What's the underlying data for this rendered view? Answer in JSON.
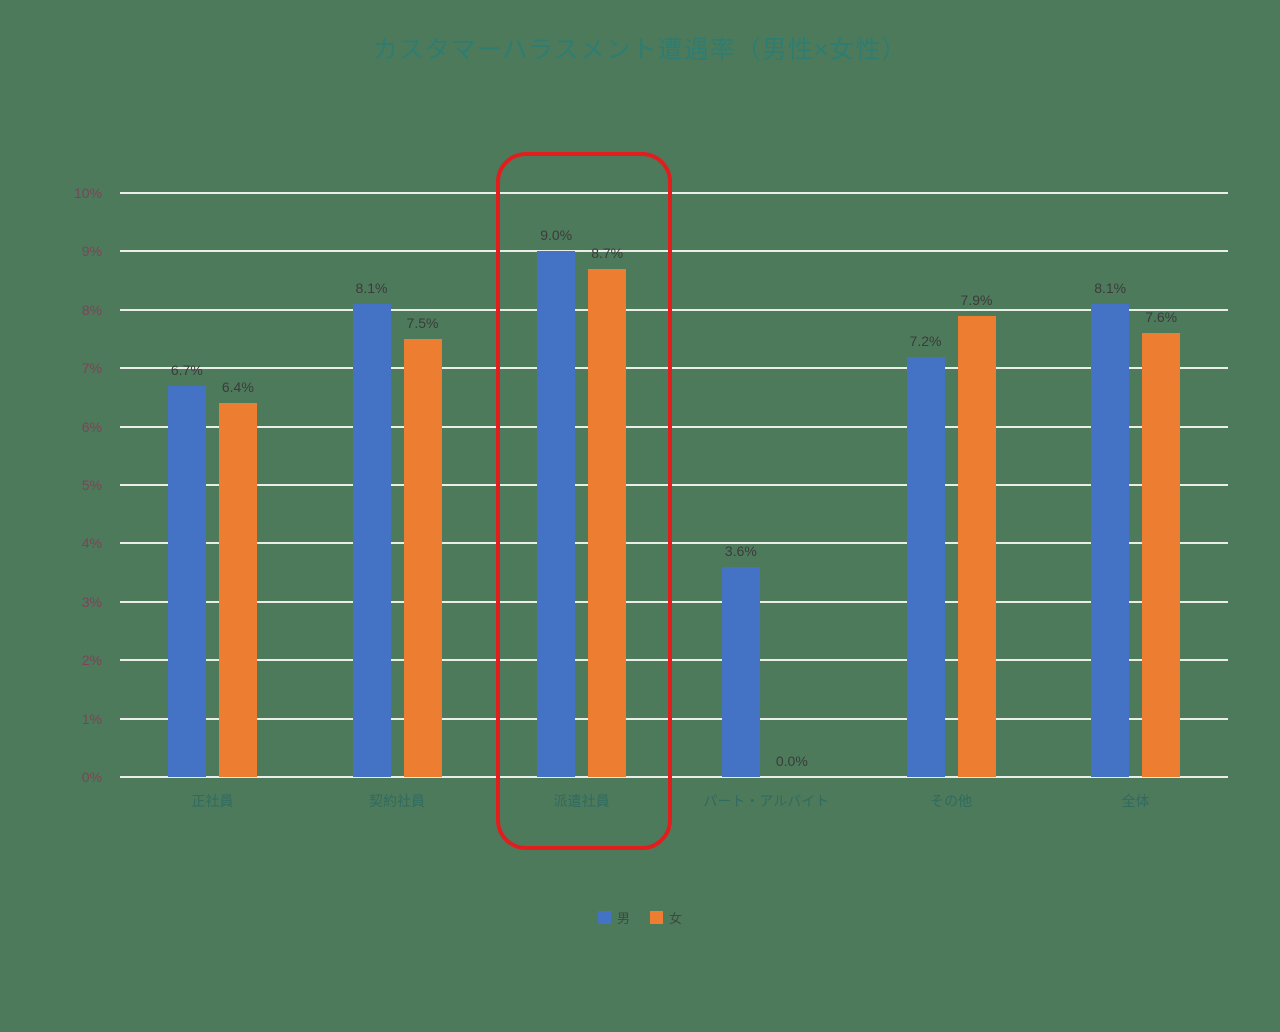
{
  "chart_data": {
    "type": "bar",
    "title": "カスタマーハラスメント遭遇率（男性×女性）",
    "categories": [
      "正社員",
      "契約社員",
      "派遣社員",
      "パート・アルバイト",
      "その他",
      "全体"
    ],
    "series": [
      {
        "name": "男",
        "color": "#4472c4",
        "values": [
          6.7,
          8.1,
          9.0,
          3.6,
          7.2,
          8.1
        ],
        "labels": [
          "6.7%",
          "8.1%",
          "9.0%",
          "3.6%",
          "7.2%",
          "8.1%"
        ]
      },
      {
        "name": "女",
        "color": "#ed7d31",
        "values": [
          6.4,
          7.5,
          8.7,
          0.0,
          7.9,
          7.6
        ],
        "labels": [
          "6.4%",
          "7.5%",
          "8.7%",
          "0.0%",
          "7.9%",
          "7.6%"
        ]
      }
    ],
    "y_ticks": [
      "10%",
      "9%",
      "8%",
      "7%",
      "6%",
      "5%",
      "4%",
      "3%",
      "2%",
      "1%",
      "0%"
    ],
    "ylim": [
      0,
      10
    ],
    "grid": true,
    "legend_position": "bottom",
    "highlight": {
      "category_index": 2,
      "color": "#e21d1d",
      "shape": "rounded-rectangle"
    },
    "background_color": "#4e7a5c"
  }
}
